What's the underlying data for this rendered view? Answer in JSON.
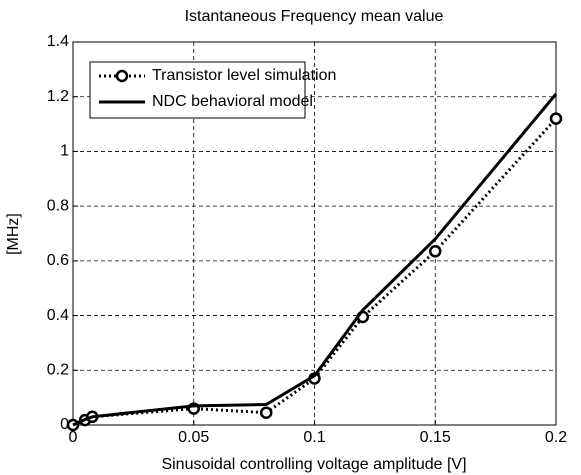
{
  "chart_data": {
    "type": "line",
    "title": "Istantaneous Frequency mean value",
    "xlabel": "Sinusoidal controlling voltage amplitude [V]",
    "ylabel": "[MHz]",
    "x": [
      0,
      0.005,
      0.008,
      0.05,
      0.08,
      0.1,
      0.12,
      0.15,
      0.2
    ],
    "series": [
      {
        "name": "Transistor level simulation",
        "color": "#000000",
        "linestyle": "dotted",
        "marker": "o",
        "values": [
          0,
          0.018,
          0.03,
          0.06,
          0.045,
          0.17,
          0.395,
          0.635,
          1.12
        ]
      },
      {
        "name": "NDC behavioral model",
        "color": "#000000",
        "linestyle": "solid",
        "values": [
          0,
          0.02,
          0.03,
          0.07,
          0.075,
          0.18,
          0.42,
          0.68,
          1.21
        ]
      }
    ],
    "xlim": [
      0,
      0.2
    ],
    "xticks": [
      0,
      0.05,
      0.1,
      0.15,
      0.2
    ],
    "ylim": [
      0,
      1.4
    ],
    "yticks": [
      0,
      0.2,
      0.4,
      0.6,
      0.8,
      1,
      1.2,
      1.4
    ],
    "grid": true,
    "legend": "upper left"
  }
}
